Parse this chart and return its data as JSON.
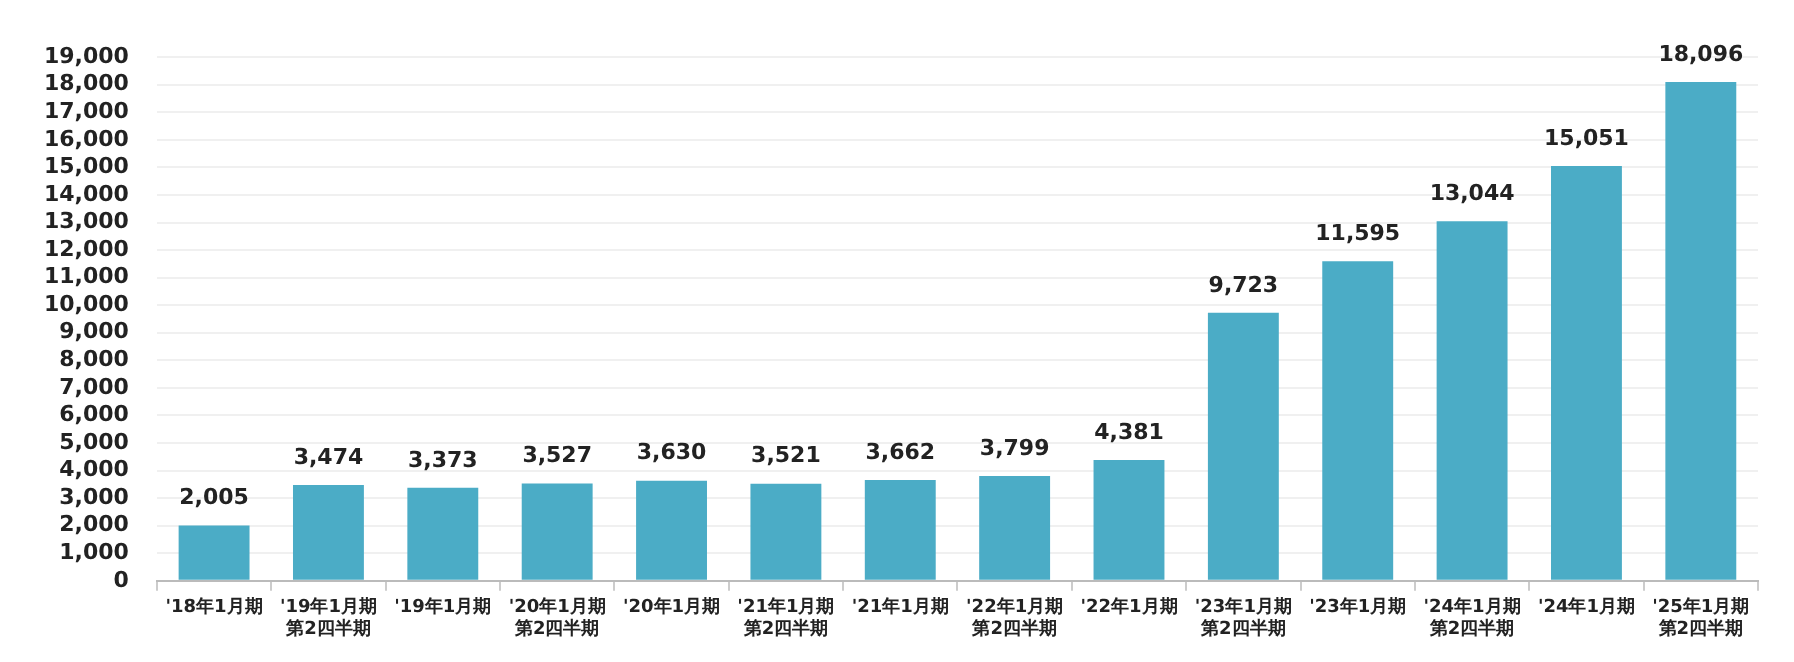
{
  "chart_data": {
    "type": "bar",
    "categories": [
      "'18年1月期",
      "'19年1月期第2四半期",
      "'19年1月期",
      "'20年1月期第2四半期",
      "'20年1月期",
      "'21年1月期第2四半期",
      "'21年1月期",
      "'22年1月期第2四半期",
      "'22年1月期",
      "'23年1月期第2四半期",
      "'23年1月期",
      "'24年1月期第2四半期",
      "'24年1月期",
      "'25年1月期第2四半期"
    ],
    "values": [
      2005,
      3474,
      3373,
      3527,
      3630,
      3521,
      3662,
      3799,
      4381,
      9723,
      11595,
      13044,
      15051,
      18096
    ],
    "value_labels": [
      "2,005",
      "3,474",
      "3,373",
      "3,527",
      "3,630",
      "3,521",
      "3,662",
      "3,799",
      "4,381",
      "9,723",
      "11,595",
      "13,044",
      "15,051",
      "18,096"
    ],
    "color": "#4bacc6",
    "ylim": [
      0,
      19000
    ],
    "yticks": [
      0,
      {
        "value": 1000,
        "label": "1,000"
      },
      {
        "value": 2000,
        "label": "2,000"
      },
      {
        "value": 3000,
        "label": "3,000"
      },
      {
        "value": 4000,
        "label": "4,000"
      },
      {
        "value": 5000,
        "label": "5,000"
      },
      {
        "value": 6000,
        "label": "6,000"
      },
      {
        "value": 7000,
        "label": "7,000"
      },
      {
        "value": 8000,
        "label": "8,000"
      },
      {
        "value": 9000,
        "label": "9,000"
      },
      {
        "value": 10000,
        "label": "10,000"
      },
      {
        "value": 11000,
        "label": "11,000"
      },
      {
        "value": 12000,
        "label": "12,000"
      },
      {
        "value": 13000,
        "label": "13,000"
      },
      {
        "value": 14000,
        "label": "14,000"
      },
      {
        "value": 15000,
        "label": "15,000"
      },
      {
        "value": 16000,
        "label": "16,000"
      },
      {
        "value": 17000,
        "label": "17,000"
      },
      {
        "value": 18000,
        "label": "18,000"
      },
      {
        "value": 19000,
        "label": "19,000"
      }
    ],
    "grid": "y",
    "legend": false
  }
}
